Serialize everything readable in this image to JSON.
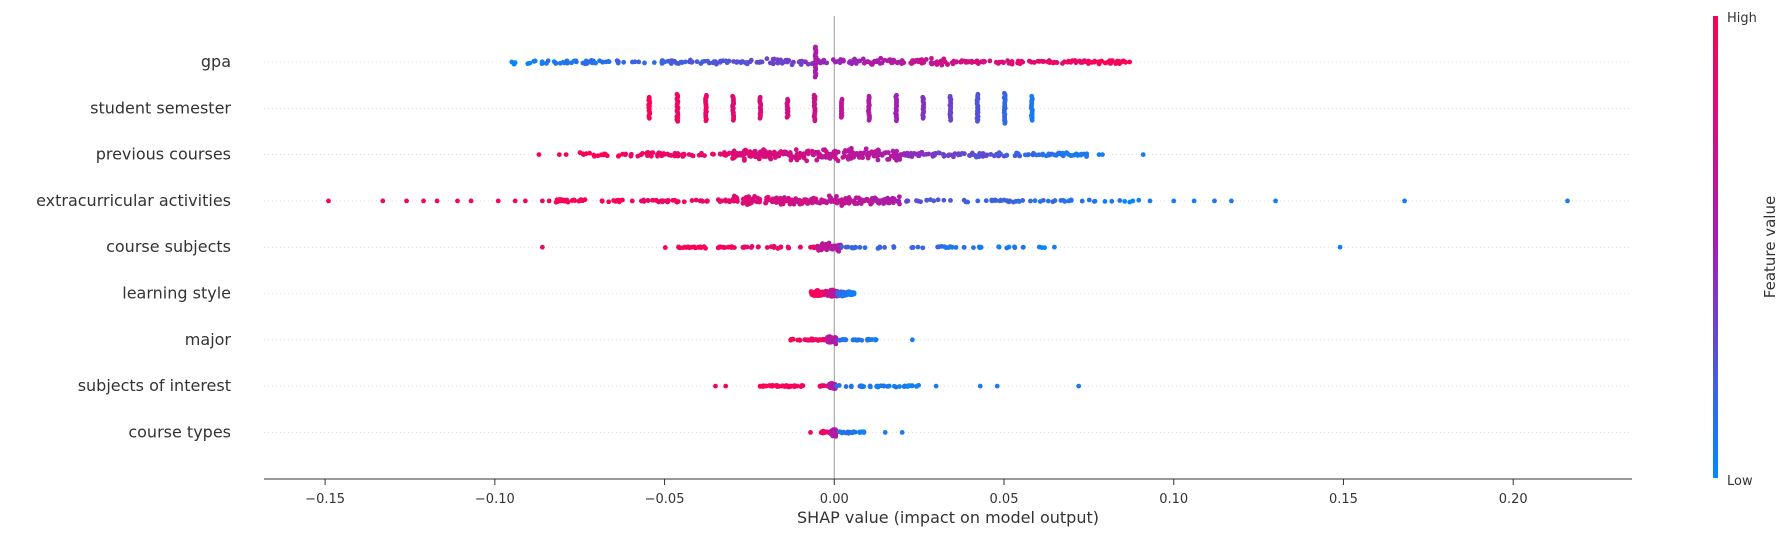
{
  "chart_data": {
    "type": "scatter",
    "subtype": "shap-beeswarm",
    "title": "",
    "xlabel": "SHAP value (impact on model output)",
    "ylabel": "",
    "xlim": [
      -0.168,
      0.235
    ],
    "x_ticks": [
      -0.15,
      -0.1,
      -0.05,
      0.0,
      0.05,
      0.1,
      0.15,
      0.2
    ],
    "x_tick_labels": [
      "−0.15",
      "−0.10",
      "−0.05",
      "0.00",
      "0.05",
      "0.10",
      "0.15",
      "0.20"
    ],
    "grid": false,
    "zero_line": true,
    "colorbar": {
      "label": "Feature value",
      "high_label": "High",
      "low_label": "Low",
      "high_color": "#ff0052",
      "mid_color": "#a020b4",
      "low_color": "#008bfb",
      "placement": "right"
    },
    "features": [
      {
        "name": "gpa",
        "min": -0.095,
        "max": 0.087,
        "extremes": [
          -0.095,
          0.087
        ],
        "dense": [
          {
            "lo": -0.095,
            "hi": -0.02,
            "n": 110,
            "cLo": 0.05,
            "cHi": 0.3,
            "spread": 1.6
          },
          {
            "lo": -0.02,
            "hi": 0.035,
            "n": 130,
            "cLo": 0.3,
            "cHi": 0.75,
            "spread": 2.5
          },
          {
            "lo": 0.035,
            "hi": 0.087,
            "n": 110,
            "cLo": 0.75,
            "cHi": 0.98,
            "spread": 1.6
          }
        ],
        "stack": [
          {
            "x": -0.0055,
            "c": 0.55,
            "h": 15
          }
        ]
      },
      {
        "name": "student semester",
        "min": -0.055,
        "max": 0.059,
        "extremes": [],
        "dense": [],
        "stack": [
          {
            "x": -0.0545,
            "c": 0.98,
            "h": 11
          },
          {
            "x": -0.0462,
            "c": 0.93,
            "h": 14
          },
          {
            "x": -0.0378,
            "c": 0.88,
            "h": 13
          },
          {
            "x": -0.0298,
            "c": 0.84,
            "h": 12
          },
          {
            "x": -0.0218,
            "c": 0.8,
            "h": 11
          },
          {
            "x": -0.0138,
            "c": 0.76,
            "h": 9
          },
          {
            "x": -0.0058,
            "c": 0.7,
            "h": 13
          },
          {
            "x": 0.0022,
            "c": 0.64,
            "h": 9
          },
          {
            "x": 0.0102,
            "c": 0.58,
            "h": 12
          },
          {
            "x": 0.0182,
            "c": 0.5,
            "h": 13
          },
          {
            "x": 0.0262,
            "c": 0.42,
            "h": 11
          },
          {
            "x": 0.0342,
            "c": 0.34,
            "h": 12
          },
          {
            "x": 0.0422,
            "c": 0.26,
            "h": 14
          },
          {
            "x": 0.0502,
            "c": 0.16,
            "h": 15
          },
          {
            "x": 0.0582,
            "c": 0.08,
            "h": 12
          }
        ]
      },
      {
        "name": "previous courses",
        "min": -0.087,
        "max": 0.091,
        "extremes": [
          -0.087,
          -0.081,
          -0.079,
          0.078,
          0.079,
          0.091
        ],
        "dense": [
          {
            "lo": -0.075,
            "hi": -0.03,
            "n": 70,
            "cLo": 0.98,
            "cHi": 0.85,
            "spread": 2
          },
          {
            "lo": -0.03,
            "hi": 0.02,
            "n": 230,
            "cLo": 0.85,
            "cHi": 0.55,
            "spread": 4.3
          },
          {
            "lo": 0.02,
            "hi": 0.075,
            "n": 110,
            "cLo": 0.45,
            "cHi": 0.05,
            "spread": 2
          }
        ],
        "stack": []
      },
      {
        "name": "extracurricular activities",
        "min": -0.149,
        "max": 0.216,
        "extremes": [
          -0.149,
          -0.133,
          -0.126,
          -0.121,
          -0.117,
          -0.111,
          -0.107,
          -0.099,
          -0.094,
          -0.091,
          -0.086,
          -0.084,
          0.093,
          0.1,
          0.106,
          0.112,
          0.117,
          0.13,
          0.168,
          0.216
        ],
        "dense": [
          {
            "lo": -0.083,
            "hi": -0.03,
            "n": 80,
            "cLo": 0.98,
            "cHi": 0.88,
            "spread": 1.2
          },
          {
            "lo": -0.03,
            "hi": 0.02,
            "n": 200,
            "cLo": 0.85,
            "cHi": 0.55,
            "spread": 3.3
          },
          {
            "lo": 0.02,
            "hi": 0.09,
            "n": 60,
            "cLo": 0.3,
            "cHi": 0.05,
            "spread": 1
          }
        ],
        "stack": []
      },
      {
        "name": "course subjects",
        "min": -0.086,
        "max": 0.149,
        "extremes": [
          -0.086,
          0.149
        ],
        "dense": [
          {
            "lo": -0.05,
            "hi": -0.005,
            "n": 60,
            "cLo": 0.98,
            "cHi": 0.85,
            "spread": 0.9
          },
          {
            "lo": -0.005,
            "hi": 0.002,
            "n": 70,
            "cLo": 0.7,
            "cHi": 0.55,
            "spread": 2.8
          },
          {
            "lo": 0.002,
            "hi": 0.066,
            "n": 50,
            "cLo": 0.2,
            "cHi": 0.04,
            "spread": 0.9
          }
        ],
        "stack": []
      },
      {
        "name": "learning style",
        "min": -0.007,
        "max": 0.006,
        "extremes": [],
        "dense": [
          {
            "lo": -0.007,
            "hi": -0.002,
            "n": 50,
            "cLo": 0.98,
            "cHi": 0.9,
            "spread": 2
          },
          {
            "lo": -0.002,
            "hi": 0.001,
            "n": 50,
            "cLo": 0.75,
            "cHi": 0.55,
            "spread": 2.8
          },
          {
            "lo": 0.001,
            "hi": 0.006,
            "n": 50,
            "cLo": 0.15,
            "cHi": 0.04,
            "spread": 2
          }
        ]
      },
      {
        "name": "major",
        "min": -0.013,
        "max": 0.023,
        "extremes": [
          0.023
        ],
        "dense": [
          {
            "lo": -0.013,
            "hi": -0.002,
            "n": 30,
            "cLo": 0.98,
            "cHi": 0.9,
            "spread": 0.8
          },
          {
            "lo": -0.002,
            "hi": 0.0005,
            "n": 50,
            "cLo": 0.65,
            "cHi": 0.55,
            "spread": 2.6
          },
          {
            "lo": 0.0005,
            "hi": 0.013,
            "n": 25,
            "cLo": 0.15,
            "cHi": 0.04,
            "spread": 0.7
          }
        ],
        "stack": []
      },
      {
        "name": "subjects of interest",
        "min": -0.035,
        "max": 0.072,
        "extremes": [
          -0.035,
          -0.032,
          0.03,
          0.043,
          0.048,
          0.072
        ],
        "dense": [
          {
            "lo": -0.022,
            "hi": -0.002,
            "n": 40,
            "cLo": 0.98,
            "cHi": 0.9,
            "spread": 0.8
          },
          {
            "lo": -0.0015,
            "hi": 0.0005,
            "n": 50,
            "cLo": 0.6,
            "cHi": 0.55,
            "spread": 2.6
          },
          {
            "lo": 0.0005,
            "hi": 0.025,
            "n": 40,
            "cLo": 0.15,
            "cHi": 0.04,
            "spread": 0.8
          }
        ],
        "stack": []
      },
      {
        "name": "course types",
        "min": -0.007,
        "max": 0.021,
        "extremes": [
          -0.007,
          0.015,
          0.02
        ],
        "dense": [
          {
            "lo": -0.004,
            "hi": -0.001,
            "n": 25,
            "cLo": 0.98,
            "cHi": 0.9,
            "spread": 0.8
          },
          {
            "lo": -0.001,
            "hi": 0.0005,
            "n": 50,
            "cLo": 0.6,
            "cHi": 0.55,
            "spread": 2.6
          },
          {
            "lo": 0.0005,
            "hi": 0.009,
            "n": 25,
            "cLo": 0.15,
            "cHi": 0.04,
            "spread": 0.8
          }
        ],
        "stack": []
      }
    ]
  }
}
